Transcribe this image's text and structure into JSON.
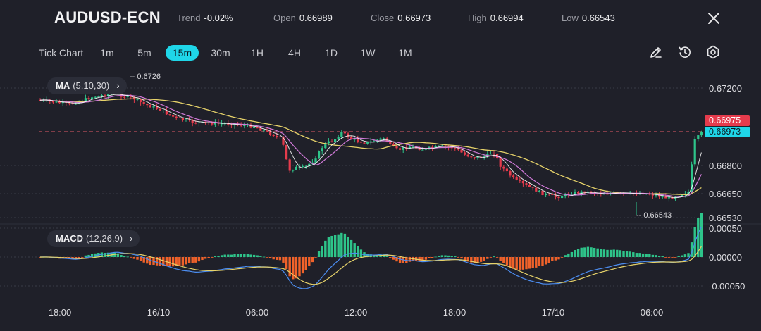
{
  "header": {
    "symbol": "AUDUSD-ECN",
    "trend_label": "Trend",
    "trend_value": "-0.02%",
    "open_label": "Open",
    "open_value": "0.66989",
    "close_label": "Close",
    "close_value": "0.66973",
    "high_label": "High",
    "high_value": "0.66994",
    "low_label": "Low",
    "low_value": "0.66543"
  },
  "timeframes": {
    "tick_chart": "Tick Chart",
    "items": [
      "1m",
      "5m",
      "15m",
      "30m",
      "1H",
      "4H",
      "1D",
      "1W",
      "1M"
    ],
    "selected": "15m"
  },
  "tools": {
    "draw_icon": "pencil-icon",
    "reset_icon": "history-icon",
    "settings_icon": "gear-icon",
    "close_icon": "close-icon"
  },
  "indicators": {
    "ma": {
      "name": "MA",
      "params": "(5,10,30)"
    },
    "macd": {
      "name": "MACD",
      "params": "(12,26,9)"
    }
  },
  "price_axis": {
    "labels": [
      "0.67200",
      "0.66800",
      "0.66650",
      "0.66530"
    ],
    "tag_red": "0.66975",
    "tag_cyan": "0.66973"
  },
  "macd_axis": {
    "labels": [
      "0.00050",
      "0.00000",
      "-0.00050"
    ]
  },
  "time_axis": {
    "labels": [
      "18:00",
      "16/10",
      "06:00",
      "12:00",
      "18:00",
      "17/10",
      "06:00"
    ]
  },
  "annotations": {
    "high_marker": "-- 0.6726",
    "low_marker": "-- 0.66543"
  },
  "colors": {
    "background": "#1f2029",
    "up": "#2ec48a",
    "down": "#e53b4c",
    "accent": "#1fd6e8",
    "ma5": "#ffffff",
    "ma10": "#d07ad8",
    "ma30": "#e7d36a",
    "macd_line": "#4c8df0",
    "signal_line": "#e7d36a",
    "hist_up": "#2ec48a",
    "hist_down": "#f0622a"
  }
}
